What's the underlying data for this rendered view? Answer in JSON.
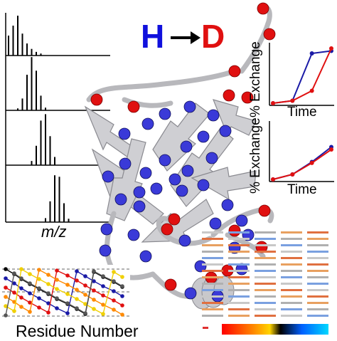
{
  "title": {
    "from": "H",
    "arrow": "→",
    "to": "D"
  },
  "mass_spec": {
    "axis_label": "m/z"
  },
  "uptake_plots": [
    {
      "ylabel": "% Exchange",
      "xlabel": "Time",
      "series": [
        {
          "color": "#1a1aa6",
          "values": [
            0,
            0.05,
            1.0,
            1.05
          ]
        },
        {
          "color": "#e01010",
          "values": [
            0,
            0.05,
            0.25,
            1.1
          ]
        }
      ]
    },
    {
      "ylabel": "% Exchange",
      "xlabel": "Time",
      "series": [
        {
          "color": "#1a1aa6",
          "values": [
            0,
            0.1,
            0.35,
            0.65
          ]
        },
        {
          "color": "#e01010",
          "values": [
            0,
            0.1,
            0.33,
            0.6
          ]
        }
      ]
    }
  ],
  "residue_plot": {
    "xlabel": "Residue Number"
  },
  "colors": {
    "hydrogen": "#1010dd",
    "deuterium": "#e01010",
    "protein": "#c8c8cc"
  }
}
